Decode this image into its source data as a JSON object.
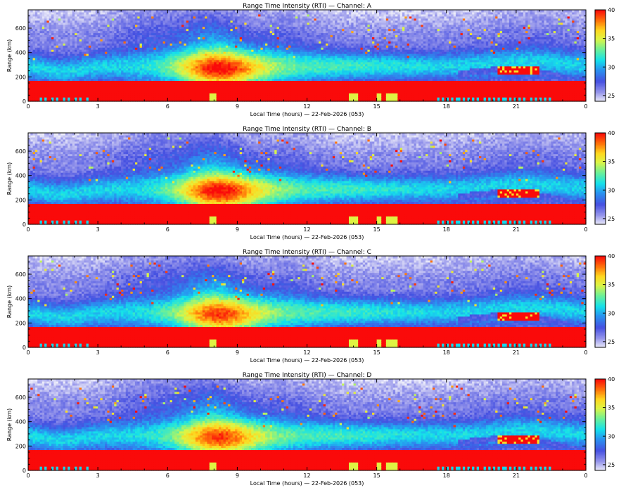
{
  "figure": {
    "xlabel": "Local Time (hours) — 22-Feb-2026 (053)",
    "ylabel": "Range (km)",
    "x_tick_labels": [
      "0",
      "3",
      "6",
      "9",
      "12",
      "15",
      "18",
      "21",
      "0"
    ],
    "y_tick_labels": [
      "0",
      "200",
      "400",
      "600"
    ],
    "colorbar_tick_labels": [
      "25",
      "30",
      "35",
      "40"
    ]
  },
  "chart_data": [
    {
      "type": "heatmap",
      "title": "Range Time Intensity (RTI) — Channel: A",
      "channel": "A",
      "xlabel": "Local Time (hours) — 22-Feb-2026 (053)",
      "ylabel": "Range (km)",
      "xlim": [
        0,
        24
      ],
      "ylim": [
        0,
        750
      ],
      "x_ticks": [
        0,
        3,
        6,
        9,
        12,
        15,
        18,
        21,
        24
      ],
      "y_ticks": [
        0,
        200,
        400,
        600
      ],
      "colorbar": {
        "min": 24,
        "max": 40,
        "ticks": [
          25,
          30,
          35,
          40
        ],
        "colormap": "rainbow"
      },
      "features": {
        "ground_clutter_top_km": 170,
        "noise_floor_level": 26,
        "bright_layer_peak_hour": 8.5,
        "bright_layer_peak_level": 37,
        "saturated_patch_hours": [
          20.2,
          22.0
        ],
        "saturated_patch_range_km": [
          220,
          290
        ]
      }
    },
    {
      "type": "heatmap",
      "title": "Range Time Intensity (RTI) — Channel: B",
      "channel": "B",
      "xlabel": "Local Time (hours) — 22-Feb-2026 (053)",
      "ylabel": "Range (km)",
      "xlim": [
        0,
        24
      ],
      "ylim": [
        0,
        750
      ],
      "x_ticks": [
        0,
        3,
        6,
        9,
        12,
        15,
        18,
        21,
        24
      ],
      "y_ticks": [
        0,
        200,
        400,
        600
      ],
      "colorbar": {
        "min": 24,
        "max": 40,
        "ticks": [
          25,
          30,
          35,
          40
        ],
        "colormap": "rainbow"
      },
      "features": {
        "ground_clutter_top_km": 170,
        "noise_floor_level": 26,
        "bright_layer_peak_hour": 8.5,
        "bright_layer_peak_level": 37,
        "saturated_patch_hours": [
          20.2,
          22.0
        ],
        "saturated_patch_range_km": [
          220,
          290
        ]
      }
    },
    {
      "type": "heatmap",
      "title": "Range Time Intensity (RTI) — Channel: C",
      "channel": "C",
      "xlabel": "Local Time (hours) — 22-Feb-2026 (053)",
      "ylabel": "Range (km)",
      "xlim": [
        0,
        24
      ],
      "ylim": [
        0,
        750
      ],
      "x_ticks": [
        0,
        3,
        6,
        9,
        12,
        15,
        18,
        21,
        24
      ],
      "y_ticks": [
        0,
        200,
        400,
        600
      ],
      "colorbar": {
        "min": 24,
        "max": 40,
        "ticks": [
          25,
          30,
          35,
          40
        ],
        "colormap": "rainbow"
      },
      "features": {
        "ground_clutter_top_km": 170,
        "noise_floor_level": 26,
        "bright_layer_peak_hour": 8.5,
        "bright_layer_peak_level": 36,
        "saturated_patch_hours": [
          20.2,
          22.0
        ],
        "saturated_patch_range_km": [
          220,
          290
        ]
      }
    },
    {
      "type": "heatmap",
      "title": "Range Time Intensity (RTI) — Channel: D",
      "channel": "D",
      "xlabel": "Local Time (hours) — 22-Feb-2026 (053)",
      "ylabel": "Range (km)",
      "xlim": [
        0,
        24
      ],
      "ylim": [
        0,
        750
      ],
      "x_ticks": [
        0,
        3,
        6,
        9,
        12,
        15,
        18,
        21,
        24
      ],
      "y_ticks": [
        0,
        200,
        400,
        600
      ],
      "colorbar": {
        "min": 24,
        "max": 40,
        "ticks": [
          25,
          30,
          35,
          40
        ],
        "colormap": "rainbow"
      },
      "features": {
        "ground_clutter_top_km": 170,
        "noise_floor_level": 26,
        "bright_layer_peak_hour": 8.5,
        "bright_layer_peak_level": 36,
        "saturated_patch_hours": [
          20.2,
          22.0
        ],
        "saturated_patch_range_km": [
          220,
          290
        ]
      }
    }
  ]
}
